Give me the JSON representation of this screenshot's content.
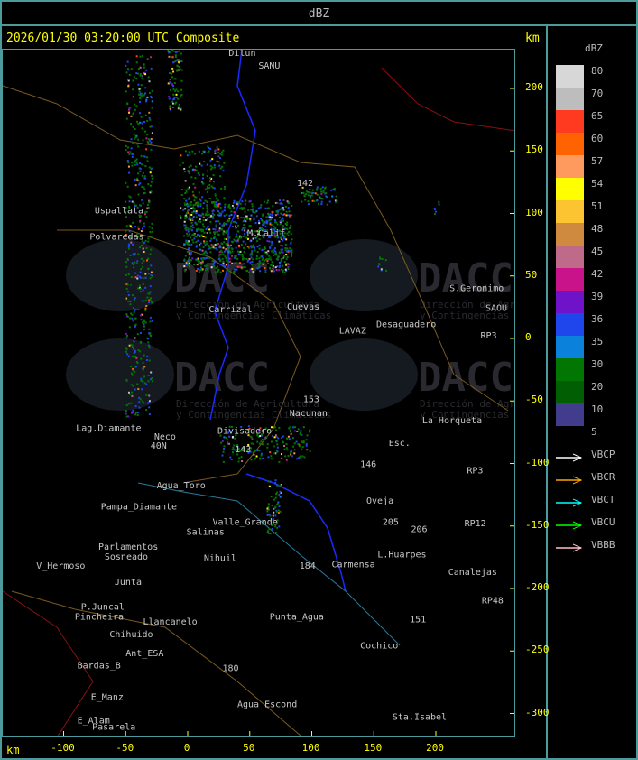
{
  "header": {
    "title": "dBZ"
  },
  "map": {
    "timestamp": "2026/01/30 03:20:00 UTC Composite",
    "unit_top": "km",
    "unit_bottom": "km",
    "x_ticks": [
      -100,
      -50,
      0,
      50,
      100,
      150,
      200
    ],
    "y_ticks": [
      200,
      150,
      100,
      50,
      0,
      -50,
      -100,
      -150,
      -200,
      -250,
      -300
    ],
    "watermark": {
      "logo": "DACC",
      "line1": "Dirección de Agricultura",
      "line2": "y Contingencias Climáticas"
    },
    "places": [
      {
        "name": "Dilun",
        "x": 33,
        "y": 226
      },
      {
        "name": "SANU",
        "x": 57,
        "y": 216
      },
      {
        "name": "Uspallata",
        "x": -75,
        "y": 100
      },
      {
        "name": "Polvaredas",
        "x": -79,
        "y": 79
      },
      {
        "name": "M.Calif",
        "x": 48,
        "y": 82
      },
      {
        "name": "Carrizal",
        "x": 17,
        "y": 21
      },
      {
        "name": "Cuevas",
        "x": 80,
        "y": 23
      },
      {
        "name": "S.Geronimo",
        "x": 211,
        "y": 38
      },
      {
        "name": "SAOU",
        "x": 240,
        "y": 22
      },
      {
        "name": "Desaguadero",
        "x": 152,
        "y": 9
      },
      {
        "name": "LAVAZ",
        "x": 122,
        "y": 4
      },
      {
        "name": "Nacunan",
        "x": 82,
        "y": -62
      },
      {
        "name": "Divisadero",
        "x": 24,
        "y": -76
      },
      {
        "name": "La Horqueta",
        "x": 189,
        "y": -68
      },
      {
        "name": "Lag.Diamante",
        "x": -90,
        "y": -74
      },
      {
        "name": "Neco",
        "x": -27,
        "y": -81
      },
      {
        "name": "Esc.",
        "x": 162,
        "y": -86
      },
      {
        "name": "Agua_Toro",
        "x": -25,
        "y": -120
      },
      {
        "name": "Pampa_Diamante",
        "x": -70,
        "y": -137
      },
      {
        "name": "Valle_Grande",
        "x": 20,
        "y": -149
      },
      {
        "name": "Salinas",
        "x": -1,
        "y": -157
      },
      {
        "name": "Parlamentos",
        "x": -72,
        "y": -169
      },
      {
        "name": "Sosneado",
        "x": -67,
        "y": -177
      },
      {
        "name": "Nihuil",
        "x": 13,
        "y": -178
      },
      {
        "name": "Carmensa",
        "x": 116,
        "y": -183
      },
      {
        "name": "L.Huarpes",
        "x": 153,
        "y": -175
      },
      {
        "name": "Canalejas",
        "x": 210,
        "y": -189
      },
      {
        "name": "V_Hermoso",
        "x": -122,
        "y": -184
      },
      {
        "name": "Junta",
        "x": -59,
        "y": -197
      },
      {
        "name": "P.Juncal",
        "x": -86,
        "y": -217
      },
      {
        "name": "Pincheira",
        "x": -91,
        "y": -225
      },
      {
        "name": "Llancanelo",
        "x": -36,
        "y": -229
      },
      {
        "name": "Punta_Agua",
        "x": 66,
        "y": -225
      },
      {
        "name": "Chihuido",
        "x": -63,
        "y": -239
      },
      {
        "name": "Ant_ESA",
        "x": -50,
        "y": -254
      },
      {
        "name": "Bardas_B",
        "x": -89,
        "y": -264
      },
      {
        "name": "Cochico",
        "x": 139,
        "y": -248
      },
      {
        "name": "E_Manz",
        "x": -78,
        "y": -289
      },
      {
        "name": "Agua_Escond",
        "x": 40,
        "y": -295
      },
      {
        "name": "E_Alam",
        "x": -89,
        "y": -308
      },
      {
        "name": "Pasarela",
        "x": -77,
        "y": -313
      },
      {
        "name": "Sta.Isabel",
        "x": 165,
        "y": -305
      },
      {
        "name": "Oveja",
        "x": 144,
        "y": -132
      },
      {
        "name": "RP3",
        "x": 236,
        "y": 0
      },
      {
        "name": "RP12",
        "x": 223,
        "y": -150
      },
      {
        "name": "RP48",
        "x": 237,
        "y": -212
      },
      {
        "name": "RP3",
        "x": 225,
        "y": -108
      },
      {
        "name": "153",
        "x": 93,
        "y": -51
      },
      {
        "name": "142",
        "x": 88,
        "y": 122
      },
      {
        "name": "143",
        "x": 38,
        "y": -91
      },
      {
        "name": "146",
        "x": 139,
        "y": -103
      },
      {
        "name": "184",
        "x": 90,
        "y": -184
      },
      {
        "name": "180",
        "x": 28,
        "y": -266
      },
      {
        "name": "151",
        "x": 179,
        "y": -227
      },
      {
        "name": "205",
        "x": 157,
        "y": -149
      },
      {
        "name": "206",
        "x": 180,
        "y": -155
      },
      {
        "name": "40N",
        "x": -30,
        "y": -88
      }
    ]
  },
  "legend": {
    "title": "dBZ",
    "levels": [
      {
        "label": "80",
        "color": "#d7d7d7"
      },
      {
        "label": "70",
        "color": "#bdbdbd"
      },
      {
        "label": "65",
        "color": "#ff3a21"
      },
      {
        "label": "60",
        "color": "#ff6200"
      },
      {
        "label": "57",
        "color": "#ff9a5e"
      },
      {
        "label": "54",
        "color": "#ffff00"
      },
      {
        "label": "51",
        "color": "#fcc430"
      },
      {
        "label": "48",
        "color": "#d08a40"
      },
      {
        "label": "45",
        "color": "#c06a8a"
      },
      {
        "label": "42",
        "color": "#c8138a"
      },
      {
        "label": "39",
        "color": "#6e13c8"
      },
      {
        "label": "36",
        "color": "#1e46ec"
      },
      {
        "label": "35",
        "color": "#0a82dc"
      },
      {
        "label": "30",
        "color": "#027602"
      },
      {
        "label": "20",
        "color": "#015e02"
      },
      {
        "label": "10",
        "color": "#423c8c"
      }
    ],
    "min_label": "5",
    "radars": [
      {
        "name": "VBCP",
        "color": "#ffffff"
      },
      {
        "name": "VBCR",
        "color": "#ffa500"
      },
      {
        "name": "VBCT",
        "color": "#00ffff"
      },
      {
        "name": "VBCU",
        "color": "#00ff00"
      },
      {
        "name": "VBBB",
        "color": "#ffc0cb"
      }
    ]
  }
}
